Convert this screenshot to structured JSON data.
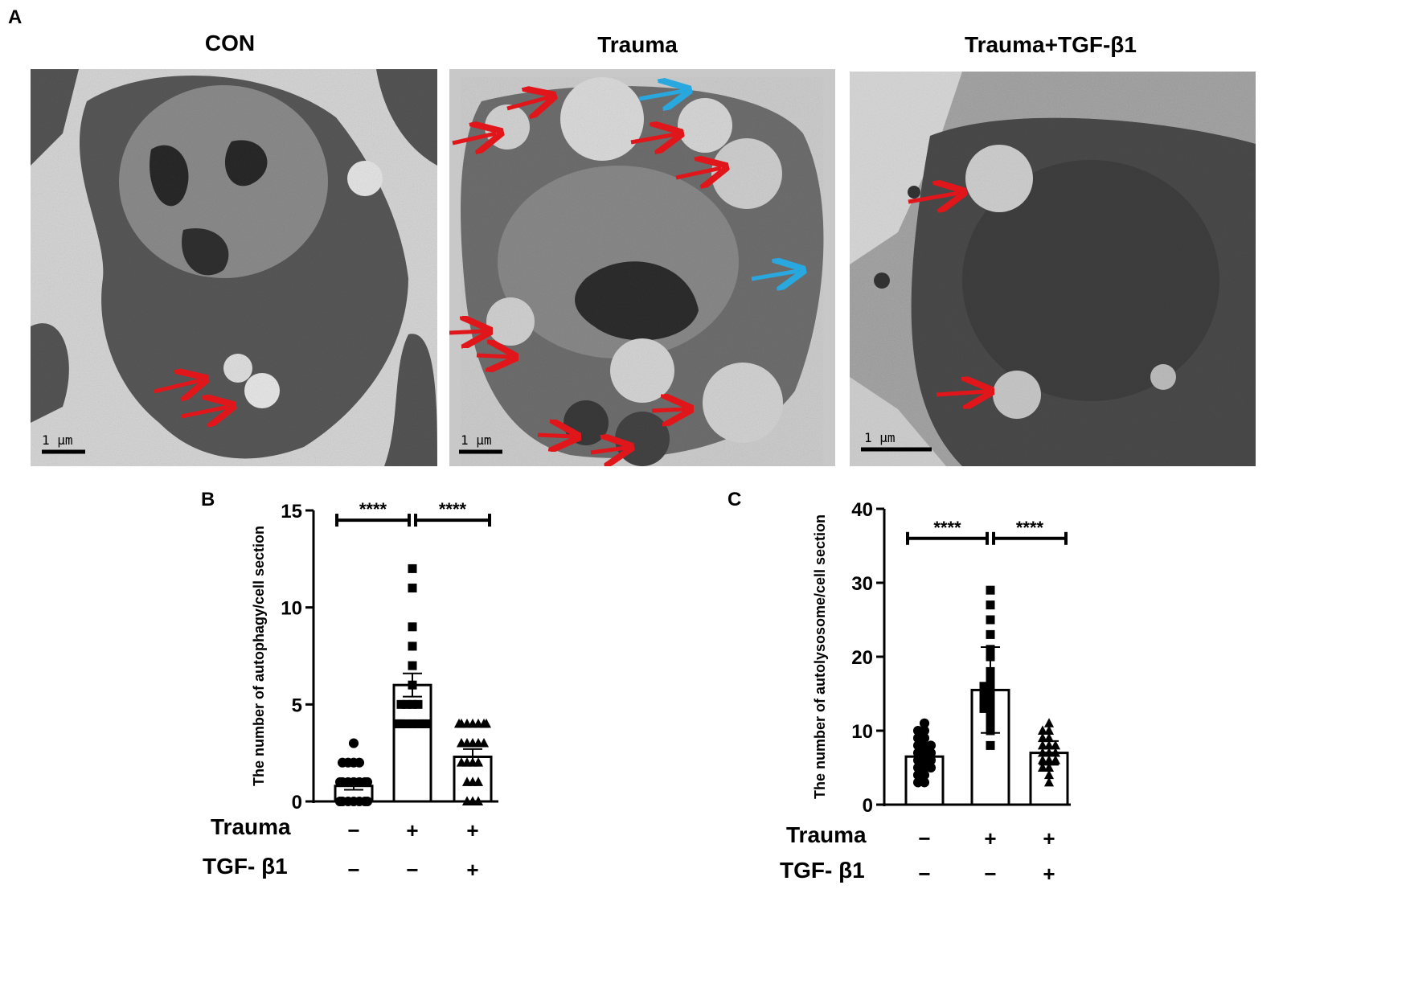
{
  "panels": {
    "a": "A",
    "b": "B",
    "c": "C"
  },
  "micrographs": [
    {
      "title": "CON",
      "scale_label": "1 μm",
      "red_arrows": 2,
      "blue_arrows": 0
    },
    {
      "title": "Trauma",
      "scale_label": "1 μm",
      "red_arrows": 10,
      "blue_arrows": 2
    },
    {
      "title": "Trauma+TGF-β1",
      "scale_label": "1 μm",
      "red_arrows": 2,
      "blue_arrows": 0
    }
  ],
  "colors": {
    "red_arrow": "#e0161a",
    "blue_arrow": "#29a8e0",
    "axis": "#000000",
    "bar_fill": "#ffffff"
  },
  "conditions": {
    "row1_label": "Trauma",
    "row2_label": "TGF- β1",
    "row1_signs": [
      "−",
      "+",
      "+"
    ],
    "row2_signs": [
      "−",
      "−",
      "+"
    ]
  },
  "chart_data": [
    {
      "type": "bar",
      "panel": "B",
      "ylabel": "The number of autophagy/cell section",
      "ylim": [
        0,
        15
      ],
      "yticks": [
        0,
        5,
        10,
        15
      ],
      "marker_shapes": [
        "circle",
        "square",
        "triangle"
      ],
      "groups": [
        {
          "mean": 0.8,
          "err": 0.2,
          "points": [
            3,
            2,
            2,
            2,
            2,
            1,
            1,
            1,
            1,
            1,
            1,
            1,
            0,
            0,
            0,
            0,
            0,
            0,
            0,
            0
          ]
        },
        {
          "mean": 6.0,
          "err": 0.6,
          "points": [
            12,
            11,
            9,
            8,
            7,
            6,
            5,
            5,
            5,
            5,
            4,
            4,
            4,
            4,
            4,
            4,
            4,
            4,
            4,
            4
          ]
        },
        {
          "mean": 2.3,
          "err": 0.4,
          "points": [
            4,
            4,
            4,
            4,
            4,
            4,
            4,
            3,
            3,
            3,
            3,
            3,
            2,
            2,
            2,
            2,
            1,
            1,
            1,
            0,
            0,
            0
          ]
        }
      ],
      "significance": [
        {
          "from": 0,
          "to": 1,
          "label": "****",
          "y": 14.5
        },
        {
          "from": 1,
          "to": 2,
          "label": "****",
          "y": 14.5
        }
      ]
    },
    {
      "type": "bar",
      "panel": "C",
      "ylabel": "The number of autolysosome/cell section",
      "ylim": [
        0,
        40
      ],
      "yticks": [
        0,
        10,
        20,
        30,
        40
      ],
      "marker_shapes": [
        "circle",
        "square",
        "triangle"
      ],
      "groups": [
        {
          "mean": 6.5,
          "err": 1.8,
          "points": [
            11,
            10,
            10,
            9,
            9,
            8,
            8,
            8,
            7,
            7,
            7,
            6,
            6,
            6,
            5,
            5,
            5,
            4,
            4,
            3,
            3
          ]
        },
        {
          "mean": 15.5,
          "err": 5.8,
          "points": [
            29,
            27,
            25,
            23,
            21,
            20,
            18,
            17,
            16,
            16,
            15,
            15,
            14,
            14,
            13,
            13,
            12,
            11,
            10,
            8
          ]
        },
        {
          "mean": 7.0,
          "err": 1.6,
          "points": [
            11,
            10,
            10,
            9,
            9,
            8,
            8,
            8,
            7,
            7,
            7,
            6,
            6,
            6,
            5,
            5,
            4,
            3
          ]
        }
      ],
      "significance": [
        {
          "from": 0,
          "to": 1,
          "label": "****",
          "y": 36
        },
        {
          "from": 1,
          "to": 2,
          "label": "****",
          "y": 36
        }
      ]
    }
  ]
}
